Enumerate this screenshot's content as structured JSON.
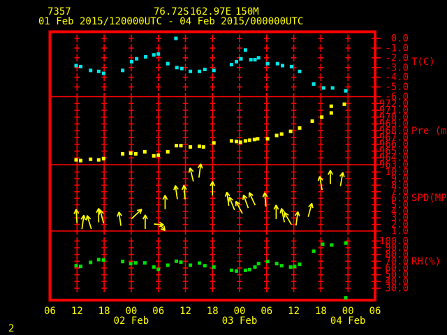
{
  "header": {
    "station_id": "7357",
    "latitude": "76.72S",
    "longitude": "162.97E",
    "elevation": "150M",
    "period": "01 Feb 2015/120000UTC - 04 Feb 2015/000000UTC"
  },
  "footer": {
    "frame_number": "2"
  },
  "colors": {
    "background": "#000000",
    "grid": "#ff0000",
    "axis_text": "#ff0000",
    "annotation": "#ffff00",
    "temperature": "#00e6e6",
    "pressure": "#ffff00",
    "wind": "#ffff00",
    "humidity": "#00e000"
  },
  "x_axis": {
    "tick_interval_hours": 6,
    "hours_span": 72,
    "hour_labels": [
      "06",
      "12",
      "18",
      "00",
      "06",
      "12",
      "18",
      "00",
      "06",
      "12",
      "18",
      "00",
      "06"
    ],
    "date_labels": [
      {
        "text": "02 Feb",
        "hour": 18
      },
      {
        "text": "03 Feb",
        "hour": 42
      },
      {
        "text": "04 Feb",
        "hour": 66
      }
    ]
  },
  "chart_data": [
    {
      "type": "scatter",
      "name": "temperature",
      "unit_label": "T(C)",
      "ylim": [
        0.7,
        -6.0
      ],
      "tick_values": [
        0,
        -1,
        -2,
        -3,
        -4,
        -5,
        -6
      ],
      "tick_labels": [
        "0.0",
        "-1.0",
        "-2.0",
        "-3.0",
        "-4.0",
        "-5.0",
        "-6.0"
      ],
      "points": [
        [
          5.8,
          -2.8
        ],
        [
          6.8,
          -2.9
        ],
        [
          9.0,
          -3.3
        ],
        [
          10.8,
          -3.4
        ],
        [
          11.9,
          -3.6
        ],
        [
          16.1,
          -3.3
        ],
        [
          18.1,
          -2.4
        ],
        [
          19.2,
          -2.1
        ],
        [
          21.2,
          -1.9
        ],
        [
          23.0,
          -1.7
        ],
        [
          24.0,
          -1.6
        ],
        [
          26.1,
          -2.6
        ],
        [
          27.9,
          0.0
        ],
        [
          28.1,
          -3.0
        ],
        [
          29.2,
          -3.1
        ],
        [
          31.1,
          -3.4
        ],
        [
          33.1,
          -3.4
        ],
        [
          34.3,
          -3.2
        ],
        [
          36.3,
          -3.3
        ],
        [
          40.2,
          -2.7
        ],
        [
          41.3,
          -2.4
        ],
        [
          42.3,
          -2.1
        ],
        [
          43.3,
          -1.2
        ],
        [
          44.5,
          -2.2
        ],
        [
          45.4,
          -2.2
        ],
        [
          46.2,
          -2.0
        ],
        [
          48.2,
          -2.6
        ],
        [
          50.4,
          -2.6
        ],
        [
          51.5,
          -2.8
        ],
        [
          53.5,
          -2.9
        ],
        [
          55.3,
          -3.4
        ],
        [
          58.4,
          -4.7
        ],
        [
          60.6,
          -5.1
        ],
        [
          62.6,
          -5.1
        ],
        [
          65.5,
          -5.4
        ]
      ]
    },
    {
      "type": "scatter",
      "name": "pressure",
      "unit_label": "Pre (mb)",
      "ylim": [
        973.0,
        963.0
      ],
      "tick_values": [
        972,
        971,
        970,
        969,
        968,
        967,
        966,
        965,
        964,
        963
      ],
      "tick_labels": [
        "972.0",
        "971.0",
        "970.0",
        "969.0",
        "968.0",
        "967.0",
        "966.0",
        "965.0",
        "964.0",
        "963.0"
      ],
      "points": [
        [
          5.8,
          963.7
        ],
        [
          6.8,
          963.6
        ],
        [
          9.0,
          963.8
        ],
        [
          10.8,
          963.7
        ],
        [
          11.9,
          963.9
        ],
        [
          16.1,
          964.6
        ],
        [
          17.9,
          964.7
        ],
        [
          19.0,
          964.6
        ],
        [
          21.0,
          964.9
        ],
        [
          23.0,
          964.3
        ],
        [
          24.0,
          964.4
        ],
        [
          26.1,
          964.9
        ],
        [
          28.0,
          965.8
        ],
        [
          29.0,
          965.8
        ],
        [
          31.1,
          965.6
        ],
        [
          33.1,
          965.7
        ],
        [
          34.0,
          965.6
        ],
        [
          36.3,
          966.2
        ],
        [
          40.2,
          966.5
        ],
        [
          41.3,
          966.4
        ],
        [
          42.2,
          966.3
        ],
        [
          43.3,
          966.5
        ],
        [
          44.2,
          966.6
        ],
        [
          45.3,
          966.7
        ],
        [
          46.0,
          966.8
        ],
        [
          48.2,
          966.8
        ],
        [
          50.2,
          967.3
        ],
        [
          51.3,
          967.5
        ],
        [
          53.3,
          967.9
        ],
        [
          55.3,
          968.4
        ],
        [
          58.1,
          969.4
        ],
        [
          60.2,
          970.0
        ],
        [
          62.3,
          970.6
        ],
        [
          62.3,
          971.6
        ],
        [
          65.2,
          971.9
        ]
      ]
    },
    {
      "type": "wind_arrows",
      "name": "wind_speed",
      "unit_label": "SPD(MPS)",
      "ylim": [
        11.0,
        1.0
      ],
      "tick_values": [
        10,
        9,
        8,
        7,
        6,
        5,
        4,
        3,
        2,
        1
      ],
      "tick_labels": [
        "10.0",
        "9.0",
        "8.0",
        "7.0",
        "6.0",
        "5.0",
        "4.0",
        "3.0",
        "2.0",
        "1.0"
      ],
      "points_format": [
        "hour",
        "speed_mps",
        "direction_deg_cw_from_up",
        "length_px_optional"
      ],
      "points": [
        [
          5.9,
          3.25,
          -4
        ],
        [
          7.3,
          2.35,
          8
        ],
        [
          8.7,
          2.35,
          -17
        ],
        [
          10.8,
          3.4,
          0
        ],
        [
          11.5,
          3.2,
          -14
        ],
        [
          15.5,
          2.85,
          -8
        ],
        [
          19.2,
          3.6,
          47
        ],
        [
          21.1,
          2.4,
          0
        ],
        [
          24.1,
          2.0,
          95,
          14
        ],
        [
          24.9,
          1.55,
          140,
          12
        ],
        [
          25.5,
          5.4,
          0
        ],
        [
          28.0,
          6.9,
          -8
        ],
        [
          29.8,
          6.9,
          -5
        ],
        [
          31.4,
          9.6,
          -14
        ],
        [
          33.2,
          10.2,
          8
        ],
        [
          36.0,
          7.5,
          0
        ],
        [
          39.4,
          5.9,
          -8
        ],
        [
          40.3,
          5.2,
          -22
        ],
        [
          41.9,
          4.6,
          -28
        ],
        [
          43.4,
          5.5,
          -20
        ],
        [
          44.8,
          5.9,
          -25
        ],
        [
          47.7,
          5.8,
          -5
        ],
        [
          50.1,
          3.9,
          0
        ],
        [
          51.6,
          3.4,
          -12
        ],
        [
          52.7,
          2.9,
          -30
        ],
        [
          54.7,
          2.9,
          8
        ],
        [
          57.6,
          4.2,
          15
        ],
        [
          60.0,
          8.3,
          -10
        ],
        [
          62.1,
          9.2,
          0
        ],
        [
          64.6,
          8.9,
          10
        ]
      ]
    },
    {
      "type": "scatter",
      "name": "relative_humidity",
      "unit_label": "RH(%)",
      "ylim": [
        114.0,
        15.0
      ],
      "tick_values": [
        100,
        90,
        80,
        70,
        60,
        50,
        40,
        30
      ],
      "tick_labels": [
        "100.0",
        "90.0",
        "80.0",
        "70.0",
        "60.0",
        "50.0",
        "40.0",
        "30.0"
      ],
      "points": [
        [
          5.8,
          63.4
        ],
        [
          6.8,
          62.4
        ],
        [
          9.0,
          68.3
        ],
        [
          10.8,
          72.4
        ],
        [
          11.9,
          71.7
        ],
        [
          16.1,
          69.6
        ],
        [
          17.9,
          66.5
        ],
        [
          19.0,
          67.5
        ],
        [
          21.0,
          67.5
        ],
        [
          23.0,
          61.3
        ],
        [
          24.0,
          57.9
        ],
        [
          26.1,
          64.1
        ],
        [
          28.0,
          70.0
        ],
        [
          29.0,
          68.6
        ],
        [
          31.1,
          64.1
        ],
        [
          33.1,
          67.2
        ],
        [
          34.3,
          63.4
        ],
        [
          36.3,
          61.3
        ],
        [
          40.2,
          56.6
        ],
        [
          41.3,
          55.5
        ],
        [
          43.3,
          56.6
        ],
        [
          44.2,
          57.6
        ],
        [
          45.4,
          61.3
        ],
        [
          46.2,
          66.5
        ],
        [
          48.2,
          69.6
        ],
        [
          50.2,
          66.5
        ],
        [
          51.3,
          63.4
        ],
        [
          53.3,
          61.3
        ],
        [
          54.2,
          62.3
        ],
        [
          55.3,
          65.5
        ],
        [
          58.4,
          84.8
        ],
        [
          60.4,
          95.1
        ],
        [
          62.4,
          94.1
        ],
        [
          65.5,
          96.9
        ],
        [
          65.5,
          15.8
        ]
      ]
    }
  ]
}
